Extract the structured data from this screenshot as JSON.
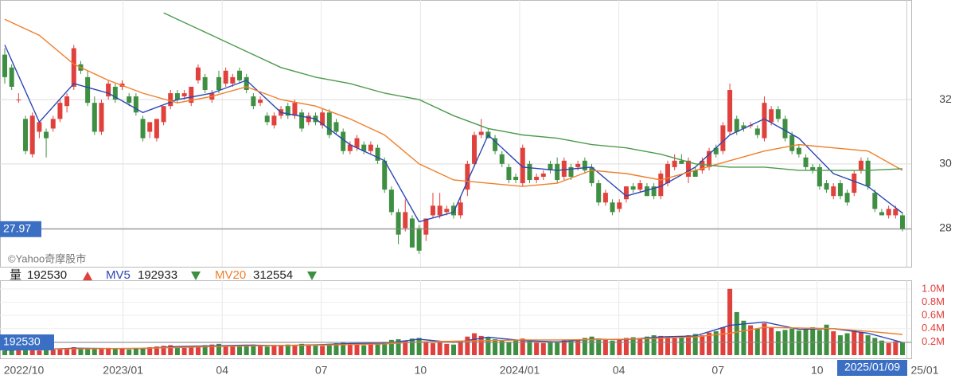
{
  "chart_data": [
    {
      "type": "candlestick",
      "candles": [
        [
          33.4,
          33.6,
          32.5,
          32.7
        ],
        [
          33.0,
          33.1,
          32.3,
          32.4
        ],
        [
          32.0,
          32.2,
          31.9,
          32.0
        ],
        [
          31.4,
          31.5,
          30.3,
          30.4
        ],
        [
          30.3,
          31.6,
          30.2,
          31.5
        ],
        [
          31.0,
          31.3,
          30.8,
          31.3
        ],
        [
          31.0,
          31.1,
          30.2,
          30.8
        ],
        [
          31.1,
          31.5,
          31.0,
          31.4
        ],
        [
          31.4,
          32.0,
          31.3,
          31.9
        ],
        [
          31.8,
          32.2,
          31.6,
          32.1
        ],
        [
          32.4,
          33.7,
          32.3,
          33.6
        ],
        [
          33.1,
          33.2,
          32.8,
          32.9
        ],
        [
          32.7,
          32.9,
          31.8,
          31.9
        ],
        [
          31.9,
          32.1,
          30.9,
          31.0
        ],
        [
          31.0,
          32.0,
          30.9,
          31.9
        ],
        [
          32.1,
          32.6,
          32.0,
          32.5
        ],
        [
          32.4,
          32.5,
          31.9,
          32.0
        ],
        [
          32.4,
          32.6,
          32.3,
          32.5
        ],
        [
          32.1,
          32.2,
          31.8,
          31.9
        ],
        [
          32.1,
          32.2,
          31.5,
          31.6
        ],
        [
          31.4,
          31.5,
          30.7,
          30.8
        ],
        [
          31.0,
          31.3,
          30.8,
          31.3
        ],
        [
          30.8,
          31.4,
          30.7,
          31.4
        ],
        [
          31.3,
          31.8,
          31.2,
          31.8
        ],
        [
          31.8,
          32.3,
          31.7,
          32.2
        ],
        [
          32.2,
          32.3,
          31.9,
          32.0
        ],
        [
          32.1,
          32.3,
          32.0,
          32.2
        ],
        [
          31.9,
          32.4,
          31.8,
          32.4
        ],
        [
          32.6,
          33.1,
          32.5,
          33.0
        ],
        [
          32.7,
          32.8,
          32.2,
          32.3
        ],
        [
          32.0,
          32.3,
          31.9,
          32.2
        ],
        [
          32.7,
          32.9,
          32.2,
          32.3
        ],
        [
          32.5,
          33.0,
          32.4,
          32.9
        ],
        [
          32.5,
          32.8,
          32.4,
          32.7
        ],
        [
          32.9,
          33.0,
          32.5,
          32.6
        ],
        [
          32.7,
          32.8,
          32.2,
          32.3
        ],
        [
          32.1,
          32.2,
          31.7,
          31.8
        ],
        [
          31.9,
          32.1,
          31.8,
          32.0
        ],
        [
          31.5,
          31.6,
          31.2,
          31.3
        ],
        [
          31.2,
          31.6,
          31.1,
          31.5
        ],
        [
          31.5,
          31.8,
          31.4,
          31.7
        ],
        [
          31.8,
          31.9,
          31.4,
          31.5
        ],
        [
          31.5,
          32.0,
          31.4,
          31.9
        ],
        [
          31.6,
          31.7,
          31.0,
          31.1
        ],
        [
          31.3,
          31.6,
          31.2,
          31.5
        ],
        [
          31.5,
          31.6,
          31.2,
          31.3
        ],
        [
          31.2,
          31.7,
          31.1,
          31.6
        ],
        [
          31.6,
          31.7,
          30.8,
          30.9
        ],
        [
          31.3,
          31.4,
          30.9,
          31.0
        ],
        [
          31.0,
          31.1,
          30.3,
          30.4
        ],
        [
          30.4,
          30.7,
          30.3,
          30.6
        ],
        [
          30.5,
          30.9,
          30.4,
          30.8
        ],
        [
          30.6,
          30.7,
          30.3,
          30.4
        ],
        [
          30.4,
          30.7,
          30.3,
          30.6
        ],
        [
          30.5,
          30.6,
          30.0,
          30.1
        ],
        [
          30.1,
          30.2,
          29.1,
          29.2
        ],
        [
          29.2,
          29.3,
          28.4,
          28.5
        ],
        [
          28.5,
          28.6,
          27.5,
          27.8
        ],
        [
          28.0,
          28.9,
          27.9,
          28.5
        ],
        [
          28.3,
          28.4,
          27.4,
          27.4
        ],
        [
          28.0,
          28.1,
          27.2,
          27.3
        ],
        [
          27.8,
          28.3,
          27.6,
          28.3
        ],
        [
          28.4,
          29.1,
          28.3,
          28.7
        ],
        [
          28.4,
          29.1,
          28.3,
          28.7
        ],
        [
          28.5,
          28.7,
          28.4,
          28.6
        ],
        [
          28.7,
          28.8,
          28.3,
          28.4
        ],
        [
          28.4,
          29.0,
          28.3,
          28.8
        ],
        [
          29.2,
          30.1,
          29.0,
          30.0
        ],
        [
          30.0,
          31.0,
          29.9,
          30.9
        ],
        [
          30.9,
          31.4,
          30.8,
          31.0
        ],
        [
          31.0,
          31.1,
          30.8,
          30.8
        ],
        [
          30.8,
          30.9,
          30.3,
          30.4
        ],
        [
          30.3,
          30.4,
          29.9,
          30.0
        ],
        [
          29.9,
          30.0,
          29.4,
          29.5
        ],
        [
          29.6,
          29.7,
          29.4,
          29.5
        ],
        [
          29.4,
          30.6,
          29.3,
          30.5
        ],
        [
          30.0,
          30.1,
          29.4,
          29.5
        ],
        [
          29.5,
          29.7,
          29.4,
          29.6
        ],
        [
          29.6,
          29.8,
          29.5,
          29.7
        ],
        [
          30.0,
          30.1,
          29.7,
          29.8
        ],
        [
          30.0,
          30.2,
          29.4,
          29.5
        ],
        [
          29.6,
          30.2,
          29.5,
          30.1
        ],
        [
          29.9,
          30.0,
          29.5,
          29.6
        ],
        [
          29.9,
          30.1,
          29.8,
          30.0
        ],
        [
          30.1,
          30.2,
          29.7,
          29.8
        ],
        [
          29.9,
          30.0,
          29.3,
          29.4
        ],
        [
          29.4,
          29.5,
          28.7,
          28.8
        ],
        [
          28.8,
          29.2,
          28.7,
          29.1
        ],
        [
          28.8,
          28.9,
          28.4,
          28.5
        ],
        [
          28.6,
          28.9,
          28.5,
          28.8
        ],
        [
          28.9,
          29.3,
          28.8,
          29.3
        ],
        [
          29.3,
          29.4,
          29.1,
          29.2
        ],
        [
          29.2,
          29.5,
          29.1,
          29.4
        ],
        [
          29.3,
          29.4,
          29.0,
          29.0
        ],
        [
          29.3,
          29.4,
          28.9,
          29.0
        ],
        [
          29.0,
          29.8,
          28.9,
          29.7
        ],
        [
          29.4,
          30.1,
          29.3,
          30.0
        ],
        [
          29.9,
          30.3,
          29.8,
          30.1
        ],
        [
          30.1,
          30.3,
          30.0,
          30.0
        ],
        [
          29.6,
          30.2,
          29.4,
          30.1
        ],
        [
          29.8,
          29.9,
          29.6,
          29.6
        ],
        [
          29.8,
          30.2,
          29.7,
          30.1
        ],
        [
          29.9,
          30.5,
          29.8,
          30.4
        ],
        [
          30.5,
          30.6,
          30.2,
          30.3
        ],
        [
          30.4,
          31.3,
          30.3,
          31.2
        ],
        [
          31.0,
          32.5,
          30.9,
          32.3
        ],
        [
          31.4,
          31.5,
          30.9,
          31.0
        ],
        [
          31.2,
          31.3,
          31.0,
          31.1
        ],
        [
          31.2,
          31.3,
          31.1,
          31.2
        ],
        [
          31.1,
          31.2,
          30.8,
          30.9
        ],
        [
          30.8,
          32.1,
          30.7,
          31.9
        ],
        [
          31.3,
          31.8,
          31.2,
          31.7
        ],
        [
          31.7,
          31.8,
          31.3,
          31.4
        ],
        [
          31.4,
          31.5,
          30.7,
          30.8
        ],
        [
          30.9,
          31.0,
          30.3,
          30.4
        ],
        [
          30.5,
          30.6,
          30.2,
          30.3
        ],
        [
          30.2,
          30.3,
          29.8,
          29.9
        ],
        [
          29.9,
          30.0,
          29.7,
          29.8
        ],
        [
          29.9,
          30.0,
          29.2,
          29.3
        ],
        [
          29.4,
          29.5,
          29.1,
          29.2
        ],
        [
          29.0,
          29.4,
          28.9,
          29.3
        ],
        [
          29.4,
          29.5,
          28.9,
          29.0
        ],
        [
          29.1,
          29.2,
          28.7,
          28.8
        ],
        [
          29.1,
          29.8,
          29.0,
          29.7
        ],
        [
          29.8,
          30.2,
          29.7,
          30.1
        ],
        [
          30.1,
          30.2,
          29.2,
          29.3
        ],
        [
          29.1,
          29.2,
          28.5,
          28.6
        ],
        [
          28.5,
          28.6,
          28.4,
          28.4
        ],
        [
          28.4,
          28.7,
          28.3,
          28.6
        ],
        [
          28.4,
          28.7,
          28.3,
          28.6
        ],
        [
          28.4,
          28.5,
          27.9,
          27.97
        ]
      ],
      "up_color": "#e0413c",
      "down_color": "#3f8f43",
      "lines": [
        {
          "color": "#2b48b4",
          "x": [
            0,
            5,
            10,
            15,
            20,
            25,
            30,
            35,
            40,
            45,
            50,
            55,
            60,
            65,
            70,
            75,
            80,
            85,
            90,
            95,
            100,
            105,
            110,
            115,
            120,
            125,
            130
          ],
          "values": [
            33.7,
            31.3,
            32.5,
            32.2,
            31.6,
            32.0,
            32.2,
            32.6,
            31.6,
            31.4,
            30.6,
            30.1,
            28.2,
            28.5,
            30.9,
            29.9,
            29.8,
            29.9,
            29.0,
            29.3,
            29.9,
            30.9,
            31.4,
            30.8,
            29.7,
            29.3,
            28.47
          ]
        },
        {
          "color": "#f07f2a",
          "x": [
            0,
            5,
            10,
            15,
            20,
            25,
            30,
            35,
            40,
            45,
            50,
            55,
            60,
            65,
            70,
            75,
            80,
            85,
            90,
            95,
            100,
            105,
            110,
            115,
            120,
            125,
            130
          ],
          "values": [
            34.5,
            34.0,
            33.1,
            32.6,
            32.2,
            31.9,
            32.1,
            32.4,
            32.0,
            31.8,
            31.4,
            30.9,
            30.0,
            29.5,
            29.4,
            29.3,
            29.4,
            29.8,
            29.7,
            29.5,
            29.8,
            30.1,
            30.4,
            30.6,
            30.5,
            30.4,
            29.8
          ]
        },
        {
          "color": "#4c9a4c",
          "x": [
            23,
            25,
            30,
            35,
            40,
            45,
            50,
            55,
            60,
            65,
            70,
            75,
            80,
            85,
            90,
            95,
            100,
            105,
            110,
            115,
            120,
            125,
            130
          ],
          "values": [
            34.7,
            34.5,
            34.0,
            33.5,
            33.0,
            32.7,
            32.5,
            32.2,
            32.0,
            31.5,
            31.1,
            30.9,
            30.8,
            30.6,
            30.5,
            30.3,
            30.0,
            29.9,
            29.9,
            29.8,
            29.8,
            29.8,
            29.85
          ]
        }
      ],
      "ylim": [
        26.8,
        35.1
      ],
      "yticks": [
        28,
        30,
        32
      ],
      "grid": true,
      "watermark": "©Yahoo奇摩股市",
      "x_labels": [
        "2022/10",
        "2023/01",
        "04",
        "07",
        "10",
        "2024/01",
        "04",
        "07",
        "10",
        "25/01"
      ],
      "cursor_date": "2025/01/09"
    },
    {
      "type": "bar",
      "label": "量",
      "values": [
        70000,
        80000,
        75000,
        90000,
        85000,
        70000,
        80000,
        90000,
        100000,
        95000,
        120000,
        110000,
        100000,
        95000,
        105000,
        110000,
        90000,
        100000,
        85000,
        95000,
        110000,
        120000,
        130000,
        140000,
        150000,
        120000,
        110000,
        130000,
        140000,
        150000,
        160000,
        170000,
        150000,
        140000,
        130000,
        150000,
        160000,
        140000,
        130000,
        150000,
        140000,
        160000,
        150000,
        170000,
        160000,
        150000,
        140000,
        170000,
        180000,
        190000,
        170000,
        160000,
        150000,
        180000,
        170000,
        200000,
        230000,
        240000,
        220000,
        250000,
        260000,
        200000,
        180000,
        190000,
        170000,
        160000,
        210000,
        280000,
        330000,
        290000,
        260000,
        240000,
        220000,
        200000,
        230000,
        250000,
        210000,
        190000,
        180000,
        200000,
        210000,
        230000,
        220000,
        240000,
        260000,
        280000,
        250000,
        230000,
        220000,
        240000,
        260000,
        270000,
        250000,
        280000,
        300000,
        290000,
        270000,
        260000,
        280000,
        300000,
        320000,
        300000,
        340000,
        360000,
        420000,
        1000000,
        650000,
        520000,
        450000,
        400000,
        480000,
        420000,
        360000,
        380000,
        400000,
        370000,
        390000,
        420000,
        380000,
        460000,
        360000,
        300000,
        330000,
        380000,
        350000,
        300000,
        260000,
        220000,
        180000,
        210000,
        192530
      ],
      "lines": [
        {
          "name": "MV5",
          "color": "#2b48b4",
          "x": [
            0,
            5,
            10,
            15,
            20,
            25,
            30,
            35,
            40,
            45,
            50,
            55,
            60,
            65,
            70,
            75,
            80,
            85,
            90,
            95,
            100,
            105,
            110,
            115,
            120,
            125,
            130
          ],
          "values": [
            75000,
            85000,
            105000,
            100000,
            100000,
            130000,
            140000,
            150000,
            145000,
            155000,
            175000,
            180000,
            240000,
            190000,
            270000,
            220000,
            200000,
            240000,
            235000,
            275000,
            290000,
            450000,
            500000,
            390000,
            400000,
            330000,
            192933
          ]
        },
        {
          "name": "MV20",
          "color": "#f07f2a",
          "x": [
            0,
            5,
            10,
            15,
            20,
            25,
            30,
            35,
            40,
            45,
            50,
            55,
            60,
            65,
            70,
            75,
            80,
            85,
            90,
            95,
            100,
            105,
            110,
            115,
            120,
            125,
            130
          ],
          "values": [
            90000,
            88000,
            95000,
            100000,
            105000,
            115000,
            130000,
            140000,
            145000,
            150000,
            160000,
            170000,
            200000,
            210000,
            220000,
            230000,
            230000,
            235000,
            240000,
            255000,
            275000,
            330000,
            420000,
            410000,
            400000,
            360000,
            312554
          ]
        }
      ],
      "ylim": [
        0,
        1130000
      ],
      "yticks": [
        {
          "value": 200000,
          "label": "0.2M"
        },
        {
          "value": 400000,
          "label": "0.4M"
        },
        {
          "value": 600000,
          "label": "0.6M"
        },
        {
          "value": 800000,
          "label": "0.8M"
        },
        {
          "value": 1000000,
          "label": "1.0M"
        }
      ]
    }
  ]
}
